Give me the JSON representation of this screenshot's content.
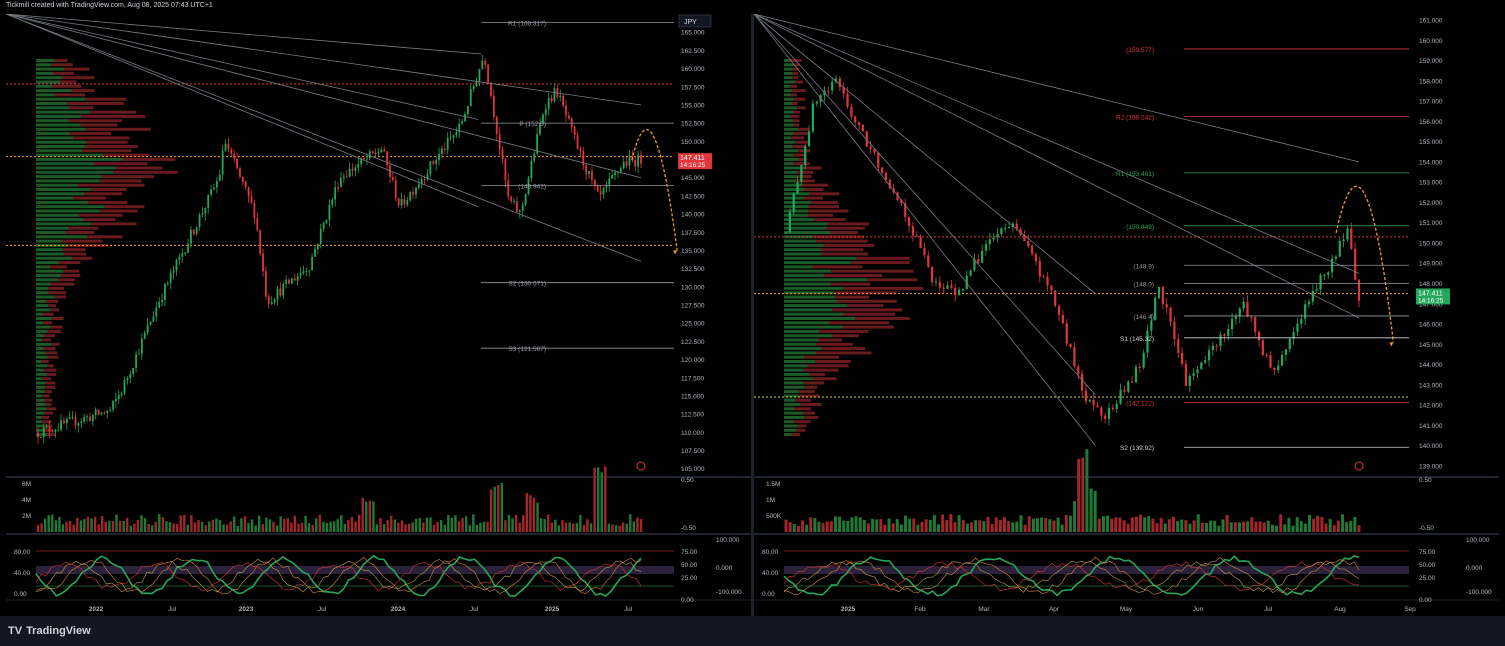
{
  "header": {
    "caption": "Tickmill created with TradingView.com, Aug 08, 2025 07:43 UTC+1"
  },
  "footer": {
    "brand": "TradingView",
    "brand_mark": "TV"
  },
  "colors": {
    "up": "#26a65b",
    "down": "#e0353b",
    "bg": "#000000",
    "grid": "#1e222d",
    "text": "#b2b5be",
    "orange": "#f59a23"
  },
  "chart_data": [
    {
      "type": "candlestick",
      "pane": "left",
      "currency": "JPY",
      "x_ticks": [
        "2022",
        "Jul",
        "2023",
        "Jul",
        "2024",
        "Jul",
        "2025",
        "Jul"
      ],
      "y_ticks": [
        "165.000",
        "162.500",
        "160.000",
        "157.500",
        "155.000",
        "152.500",
        "150.000",
        "147.500",
        "145.000",
        "142.500",
        "140.000",
        "137.500",
        "135.000",
        "132.500",
        "130.000",
        "127.500",
        "125.000",
        "122.500",
        "120.000",
        "117.500",
        "115.000",
        "112.500",
        "110.000",
        "107.500",
        "105.000"
      ],
      "ylim": [
        104.0,
        167.5
      ],
      "last_price": "147.411",
      "countdown": "14:16:25",
      "pivots": [
        {
          "label": "R1 (166.317)",
          "value": 166.317,
          "color": "#9598a1"
        },
        {
          "label": "P (152.5)",
          "value": 152.5,
          "color": "#9598a1"
        },
        {
          "label": "(143.942)",
          "value": 143.942,
          "color": "#9598a1"
        },
        {
          "label": "S2 (130.571)",
          "value": 130.571,
          "color": "#9598a1"
        },
        {
          "label": "S3 (121.567)",
          "value": 121.567,
          "color": "#9598a1"
        }
      ],
      "hlines": [
        {
          "value": 157.9,
          "color": "#e0353b"
        },
        {
          "value": 147.9,
          "color": "#f59a23"
        },
        {
          "value": 135.7,
          "color": "#f59a23"
        }
      ],
      "volume_ticks": [
        "6M",
        "4M",
        "2M"
      ],
      "macd_ticks": [
        "0.50",
        "-0.50"
      ],
      "stoch_ticks": [
        "80.00",
        "40.00",
        "0.00"
      ],
      "stoch_right_ticks": [
        "100.000",
        "75.00",
        "0.000",
        "50.00",
        "25.00",
        "-100.000",
        "0.00"
      ]
    },
    {
      "type": "candlestick",
      "pane": "right",
      "x_ticks": [
        "2025",
        "Feb",
        "Mar",
        "Apr",
        "May",
        "Jun",
        "Jul",
        "Aug",
        "Sep"
      ],
      "y_ticks": [
        "161.000",
        "160.000",
        "159.000",
        "158.000",
        "157.000",
        "156.000",
        "155.000",
        "154.000",
        "153.000",
        "152.000",
        "151.000",
        "150.000",
        "149.000",
        "148.000",
        "147.000",
        "146.000",
        "145.000",
        "144.000",
        "143.000",
        "142.000",
        "141.000",
        "140.000",
        "139.000"
      ],
      "ylim": [
        138.5,
        161.3
      ],
      "last_price": "147.411",
      "countdown": "14:16:25",
      "pivots": [
        {
          "label": "(159.577)",
          "value": 159.577,
          "color": "#e0353b"
        },
        {
          "label": "R2 (156.242)",
          "value": 156.242,
          "color": "#e0353b"
        },
        {
          "label": "R1 (153.461)",
          "value": 153.461,
          "color": "#26a65b"
        },
        {
          "label": "(150.849)",
          "value": 150.849,
          "color": "#26a65b"
        },
        {
          "label": "(148.9)",
          "value": 148.9,
          "color": "#9598a1"
        },
        {
          "label": "(148.0)",
          "value": 148.0,
          "color": "#9598a1"
        },
        {
          "label": "(146.4)",
          "value": 146.4,
          "color": "#9598a1"
        },
        {
          "label": "S1 (145.32)",
          "value": 145.32,
          "color": "#d1d4dc"
        },
        {
          "label": "(142.122)",
          "value": 142.122,
          "color": "#e0353b"
        },
        {
          "label": "S2 (139.92)",
          "value": 139.92,
          "color": "#d1d4dc"
        }
      ],
      "hlines": [
        {
          "value": 150.3,
          "color": "#e0353b"
        },
        {
          "value": 147.5,
          "color": "#f59a23"
        },
        {
          "value": 142.4,
          "color": "#cfd64a"
        }
      ],
      "volume_ticks": [
        "1.5M",
        "1M",
        "500K"
      ],
      "macd_ticks": [
        "0.50",
        "-0.50"
      ],
      "stoch_ticks": [
        "80.00",
        "40.00",
        "0.00"
      ],
      "stoch_right_ticks": [
        "100.000",
        "75.00",
        "0.000",
        "50.00",
        "25.00",
        "-100.000",
        "0.00"
      ]
    }
  ]
}
